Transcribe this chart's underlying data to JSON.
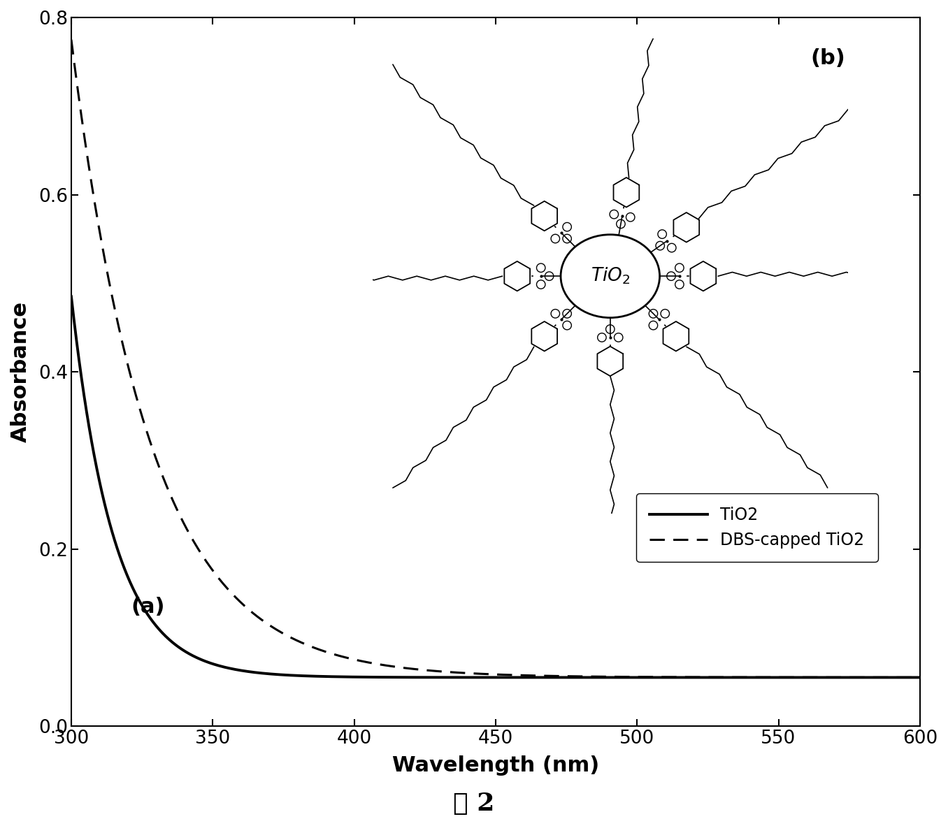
{
  "title": "",
  "xlabel": "Wavelength (nm)",
  "ylabel": "Absorbance",
  "xlim": [
    300,
    600
  ],
  "ylim": [
    0.0,
    0.8
  ],
  "xticks": [
    300,
    350,
    400,
    450,
    500,
    550,
    600
  ],
  "yticks": [
    0.0,
    0.2,
    0.4,
    0.6,
    0.8
  ],
  "label_a": "(a)",
  "label_b": "(b)",
  "legend_solid": "TiO2",
  "legend_dashed": "DBS-capped TiO2",
  "figure_label": "图 2",
  "background_color": "#ffffff",
  "line_color": "#000000",
  "tio2_amp": 0.43,
  "tio2_tau": 15.0,
  "tio2_base": 0.055,
  "dbs_amp": 0.72,
  "dbs_tau": 28.0,
  "dbs_base": 0.055
}
